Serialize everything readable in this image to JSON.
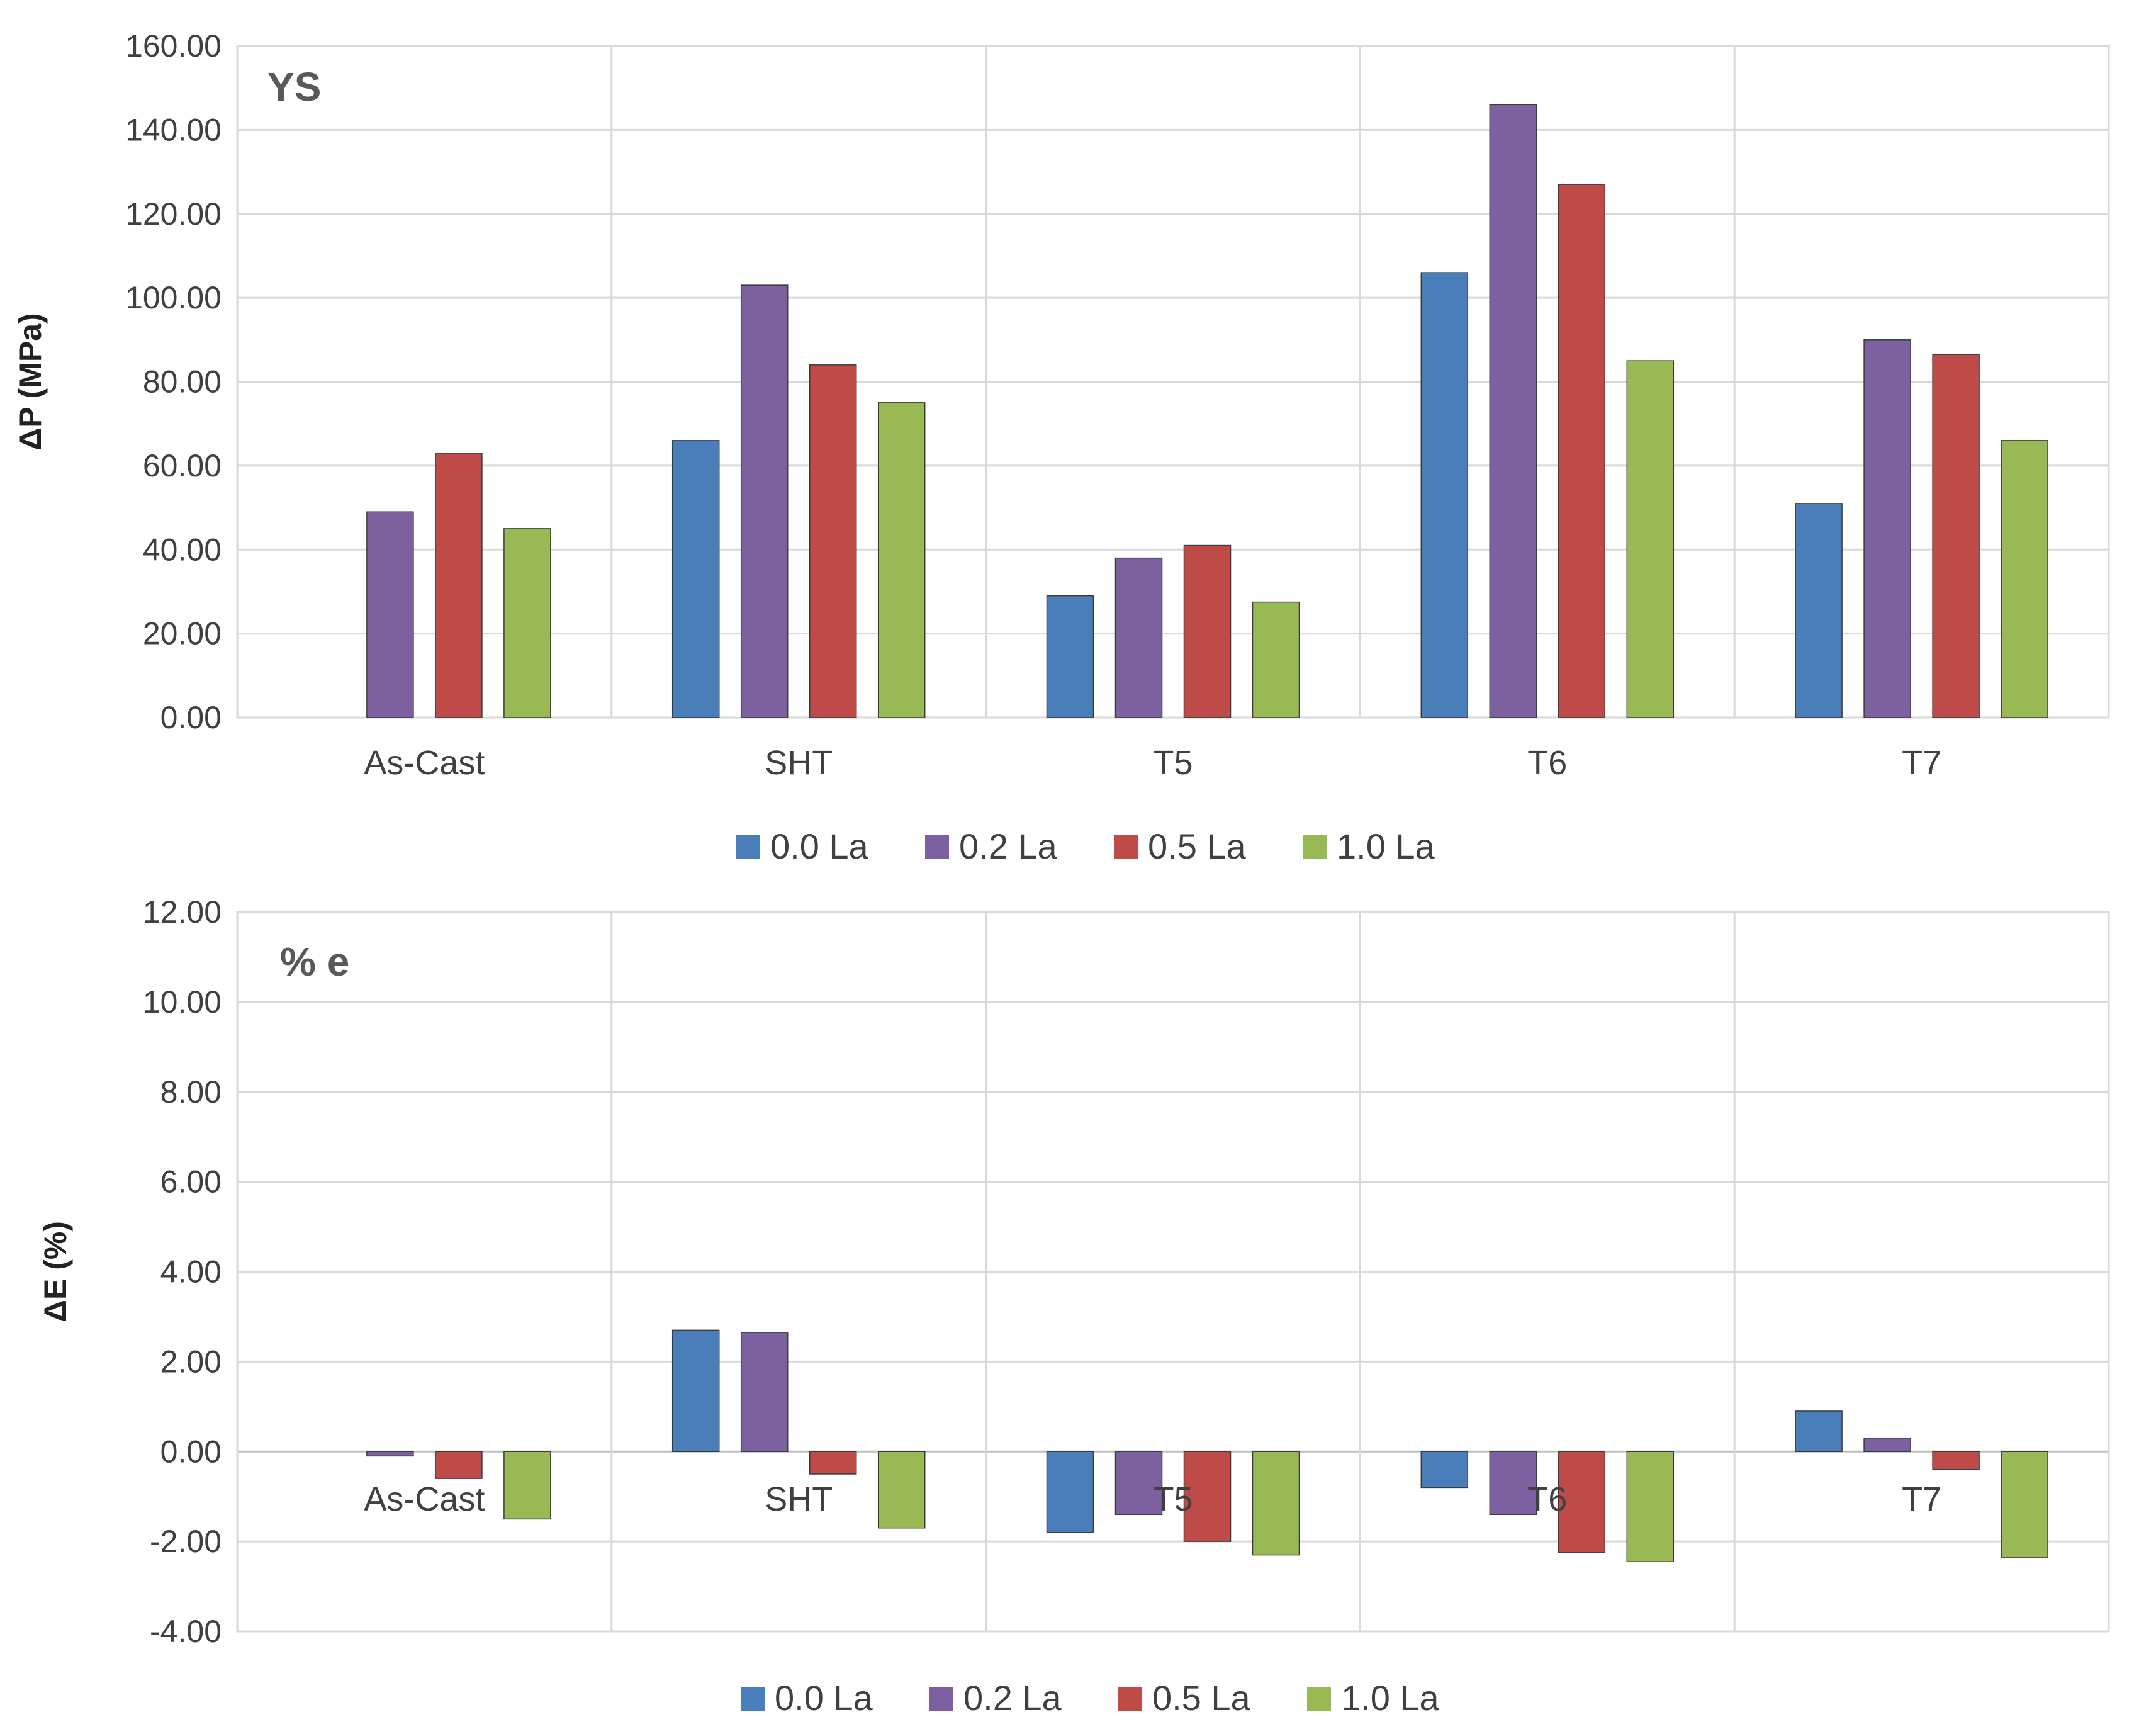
{
  "series_colors": {
    "0.0 La": "#4a7ebb",
    "0.2 La": "#7d60a0",
    "0.5 La": "#be4b48",
    "1.0 La": "#98b954"
  },
  "chart_data": [
    {
      "type": "bar",
      "panel_label": "YS",
      "title": "YS",
      "xlabel": "",
      "ylabel": "ΔP (MPa)",
      "ylim": [
        0,
        160
      ],
      "ytick_labels": [
        "0.00",
        "20.00",
        "40.00",
        "60.00",
        "80.00",
        "100.00",
        "120.00",
        "140.00",
        "160.00"
      ],
      "categories": [
        "As-Cast",
        "SHT",
        "T5",
        "T6",
        "T7"
      ],
      "grid": true,
      "legend_position": "bottom",
      "series": [
        {
          "name": "0.0 La",
          "values": [
            0,
            66,
            29,
            106,
            51
          ]
        },
        {
          "name": "0.2 La",
          "values": [
            49,
            103,
            38,
            146,
            90
          ]
        },
        {
          "name": "0.5 La",
          "values": [
            63,
            84,
            41,
            127,
            86.5
          ]
        },
        {
          "name": "1.0 La",
          "values": [
            45,
            75,
            27.5,
            85,
            66
          ]
        }
      ]
    },
    {
      "type": "bar",
      "panel_label": "% e",
      "title": "% e",
      "xlabel": "",
      "ylabel": "ΔE (%)",
      "ylim": [
        -4,
        12
      ],
      "ytick_labels": [
        "-4.00",
        "-2.00",
        "0.00",
        "2.00",
        "4.00",
        "6.00",
        "8.00",
        "10.00",
        "12.00"
      ],
      "categories": [
        "As-Cast",
        "SHT",
        "T5",
        "T6",
        "T7"
      ],
      "grid": true,
      "legend_position": "bottom",
      "series": [
        {
          "name": "0.0 La",
          "values": [
            0,
            2.7,
            -1.8,
            -0.8,
            0.9
          ]
        },
        {
          "name": "0.2 La",
          "values": [
            -0.1,
            2.65,
            -1.4,
            -1.4,
            0.3
          ]
        },
        {
          "name": "0.5 La",
          "values": [
            -0.6,
            -0.5,
            -2.0,
            -2.25,
            -0.4
          ]
        },
        {
          "name": "1.0 La",
          "values": [
            -1.5,
            -1.7,
            -2.3,
            -2.45,
            -2.35
          ]
        }
      ]
    }
  ]
}
